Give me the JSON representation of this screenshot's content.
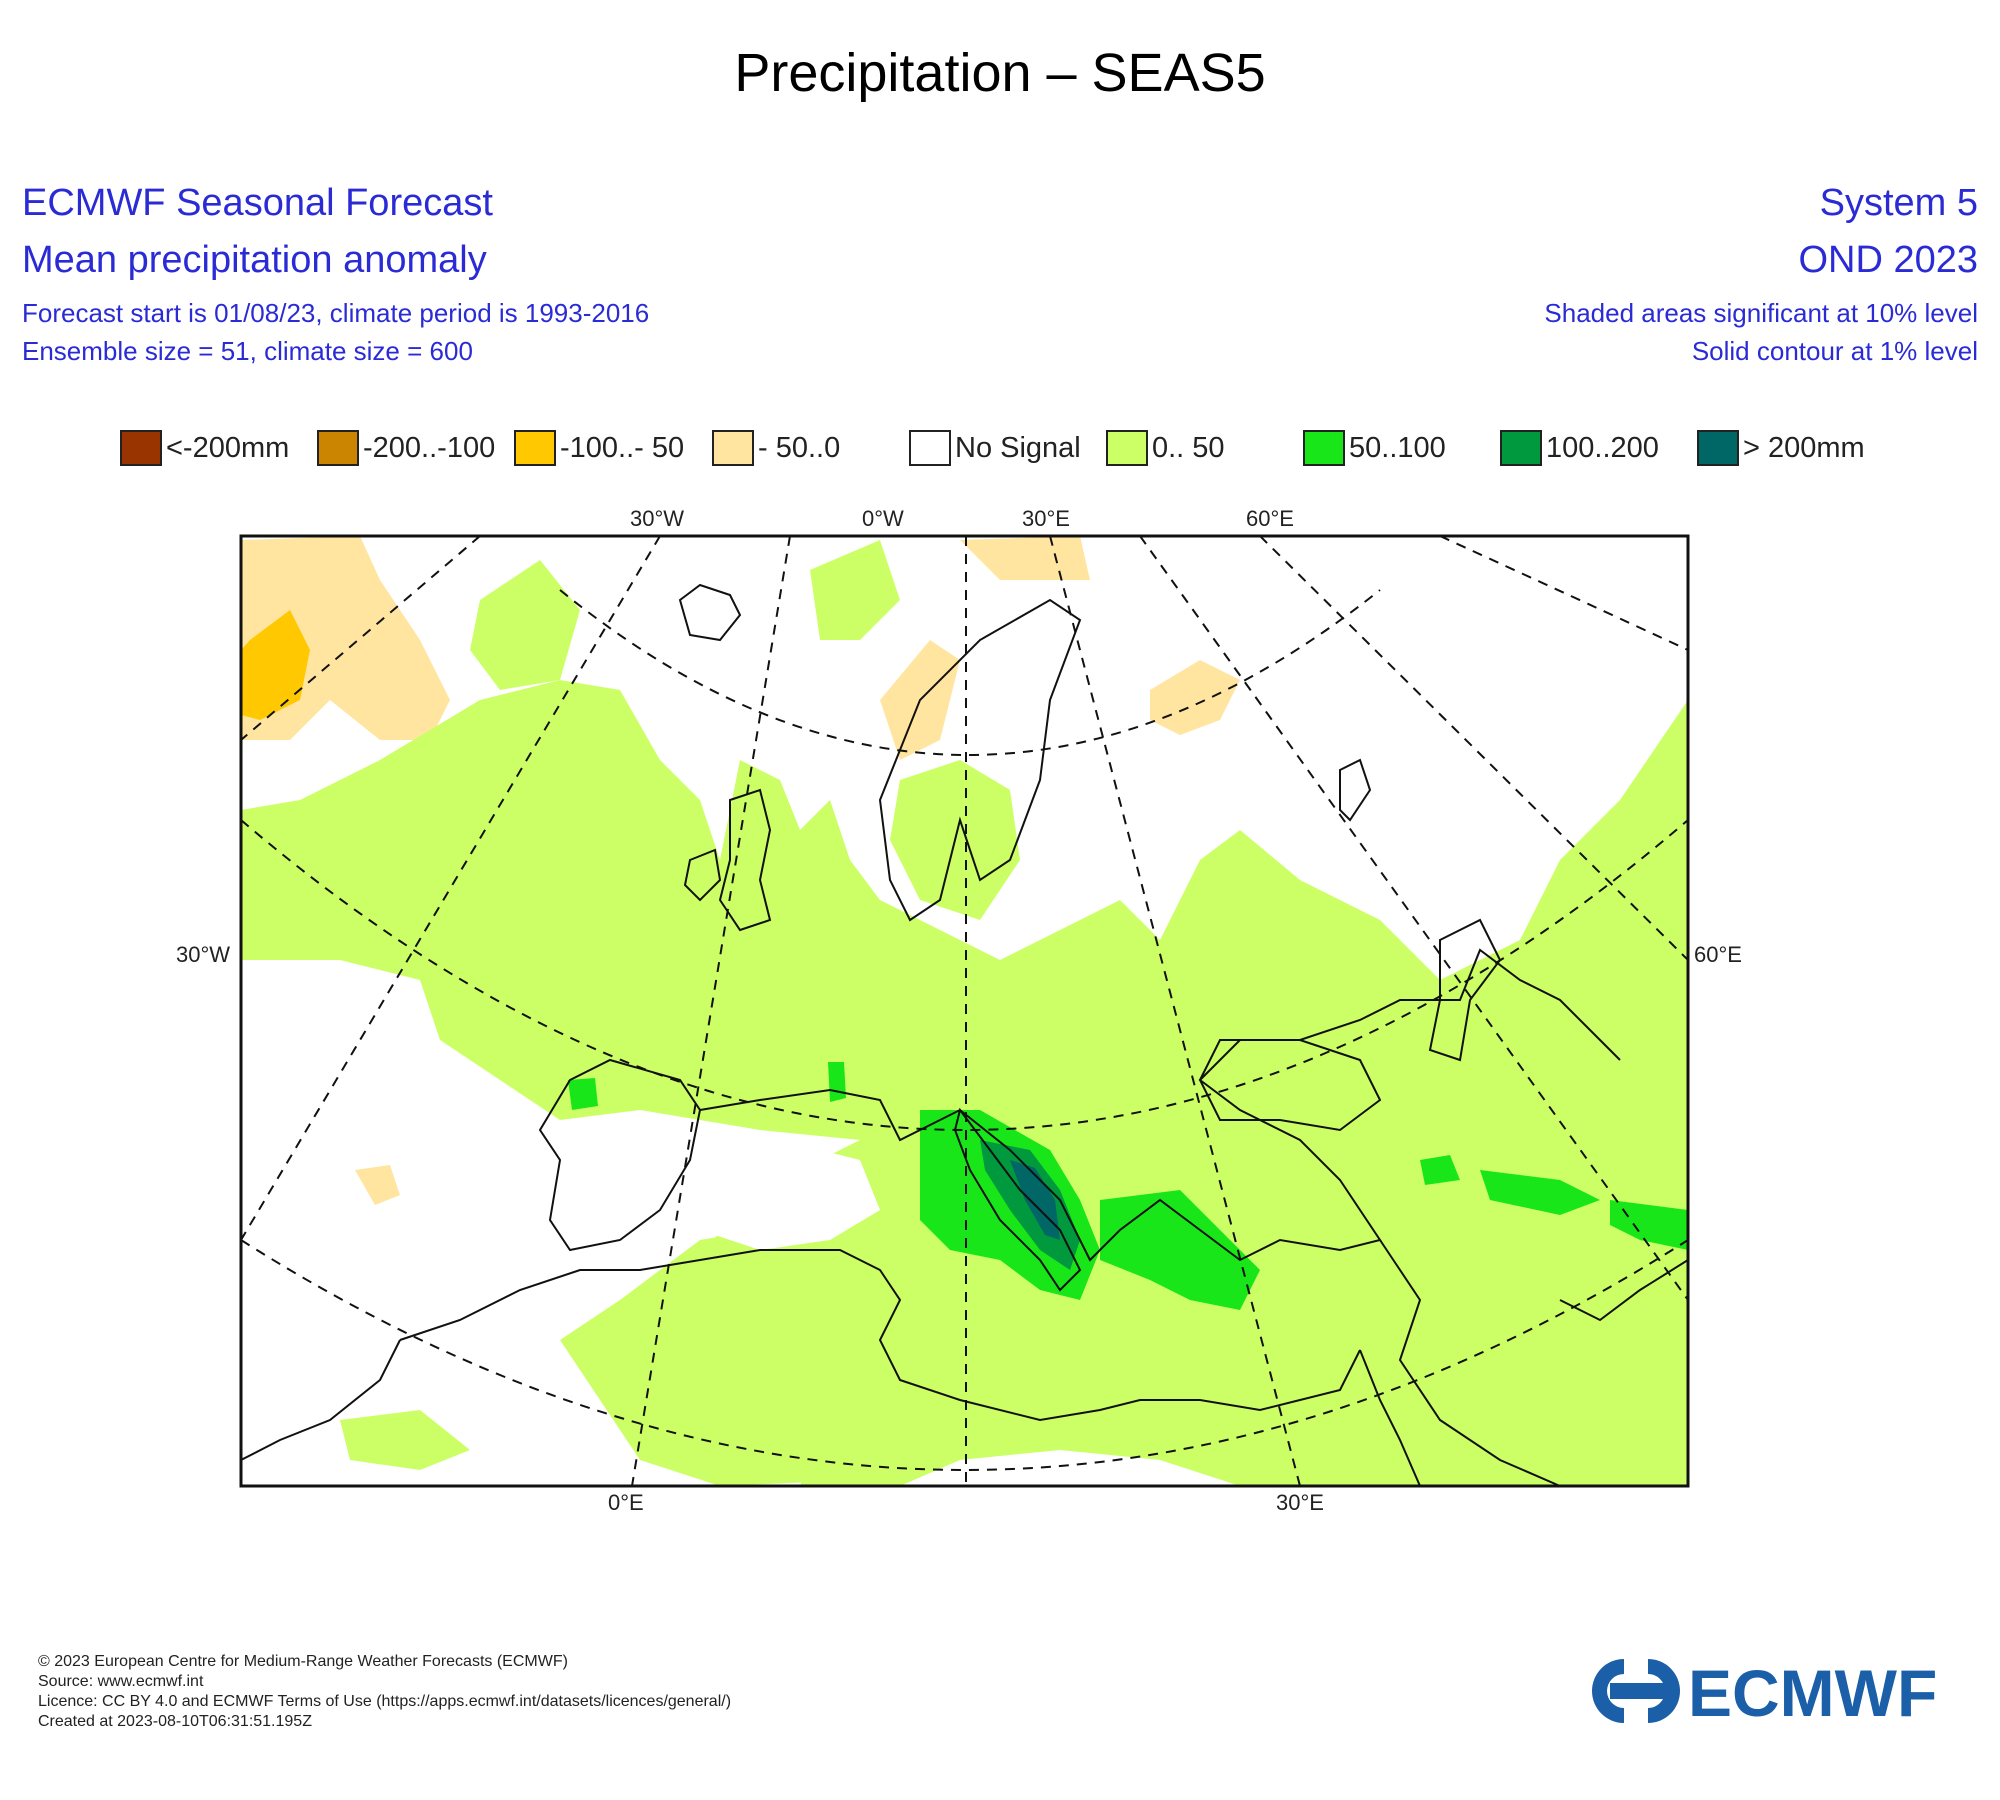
{
  "page_title": "Precipitation – SEAS5",
  "header": {
    "left_line1": "ECMWF Seasonal Forecast",
    "left_line2": "Mean precipitation anomaly",
    "left_line3": "Forecast start is 01/08/23, climate period is 1993-2016",
    "left_line4": "Ensemble size = 51, climate size = 600",
    "right_line1": "System 5",
    "right_line2": "OND 2023",
    "right_line3": "Shaded areas significant at 10% level",
    "right_line4": "Solid contour at 1% level"
  },
  "legend": [
    {
      "label": "<-200mm",
      "color": "#993300"
    },
    {
      "label": "-200..-100",
      "color": "#cc8500"
    },
    {
      "label": "-100..- 50",
      "color": "#ffc800"
    },
    {
      "label": "- 50..0",
      "color": "#ffe5a0"
    },
    {
      "label": "No Signal",
      "color": "#ffffff"
    },
    {
      "label": "0.. 50",
      "color": "#ccff66"
    },
    {
      "label": "50..100",
      "color": "#19e619"
    },
    {
      "label": "100..200",
      "color": "#00993d"
    },
    {
      "label": "> 200mm",
      "color": "#006666"
    }
  ],
  "map": {
    "top_labels": [
      "30°W",
      "0°W",
      "30°E",
      "60°E"
    ],
    "bottom_labels": [
      "0°E",
      "30°E"
    ],
    "left_label": "30°W",
    "right_label": "60°E"
  },
  "footer": {
    "line1": "© 2023 European Centre for Medium-Range Weather Forecasts (ECMWF)",
    "line2": "Source: www.ecmwf.int",
    "line3": "Licence: CC BY 4.0 and ECMWF Terms of Use (https://apps.ecmwf.int/datasets/licences/general/)",
    "line4": "Created at 2023-08-10T06:31:51.195Z"
  },
  "logo_text": "ECMWF",
  "colors": {
    "header_blue": "#2b2bd6",
    "logo_blue": "#1a5fa8",
    "light_green": "#ccff66",
    "mid_green": "#19e619",
    "dark_green": "#00993d",
    "teal": "#006666",
    "light_orange": "#ffe5a0",
    "orange": "#ffc800"
  }
}
